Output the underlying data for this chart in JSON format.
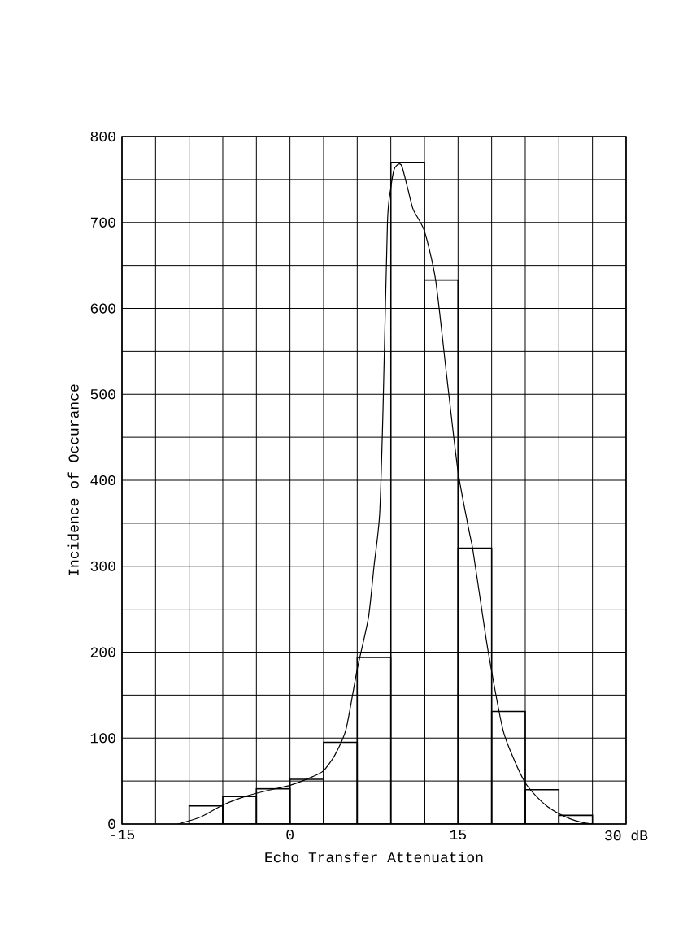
{
  "chart_data": {
    "type": "histogram",
    "xlabel": "Echo Transfer Attenuation",
    "ylabel": "Incidence of Occurance",
    "bins": [
      -9,
      -6,
      -3,
      0,
      3,
      6,
      9,
      12,
      15,
      18,
      21,
      24,
      27
    ],
    "values": [
      21,
      32,
      41,
      52,
      95,
      194,
      770,
      633,
      321,
      131,
      40,
      10
    ],
    "color": "#000000",
    "series": [
      {
        "type": "line",
        "color": "#000000",
        "x": [
          -10,
          -8,
          -6,
          -4,
          -2,
          0,
          2,
          3,
          4,
          5,
          6,
          7,
          7.5,
          8,
          8.3,
          8.7,
          9,
          9.3,
          9.7,
          10,
          10.5,
          11,
          12,
          13,
          14,
          15,
          16,
          16.3,
          17,
          17.7,
          19,
          20,
          21,
          22,
          23,
          24,
          25,
          26,
          27
        ],
        "values": [
          0,
          8,
          22,
          32,
          39,
          45,
          55,
          62,
          80,
          110,
          180,
          240,
          300,
          360,
          480,
          700,
          740,
          762,
          768,
          765,
          740,
          715,
          690,
          633,
          520,
          410,
          340,
          321,
          260,
          200,
          110,
          75,
          48,
          32,
          20,
          12,
          6,
          2,
          0
        ]
      }
    ],
    "xlim": [
      -15,
      30
    ],
    "ylim": [
      0,
      800
    ],
    "xticks": [
      -15,
      {
        "value": -12,
        "label": null
      },
      {
        "value": -9,
        "label": null
      },
      {
        "value": -6,
        "label": null
      },
      {
        "value": -3,
        "label": null
      },
      0,
      {
        "value": 3,
        "label": null
      },
      {
        "value": 6,
        "label": null
      },
      {
        "value": 9,
        "label": null
      },
      {
        "value": 12,
        "label": null
      },
      15,
      {
        "value": 18,
        "label": null
      },
      {
        "value": 21,
        "label": null
      },
      {
        "value": 24,
        "label": null
      },
      {
        "value": 27,
        "label": null
      },
      {
        "value": 30,
        "label": "30 dB"
      }
    ],
    "yticks": [
      0,
      {
        "value": 50,
        "label": null
      },
      100,
      {
        "value": 150,
        "label": null
      },
      200,
      {
        "value": 250,
        "label": null
      },
      300,
      {
        "value": 350,
        "label": null
      },
      400,
      {
        "value": 450,
        "label": null
      },
      500,
      {
        "value": 550,
        "label": null
      },
      600,
      {
        "value": 650,
        "label": null
      },
      700,
      {
        "value": 750,
        "label": null
      },
      800
    ],
    "grid": true
  }
}
